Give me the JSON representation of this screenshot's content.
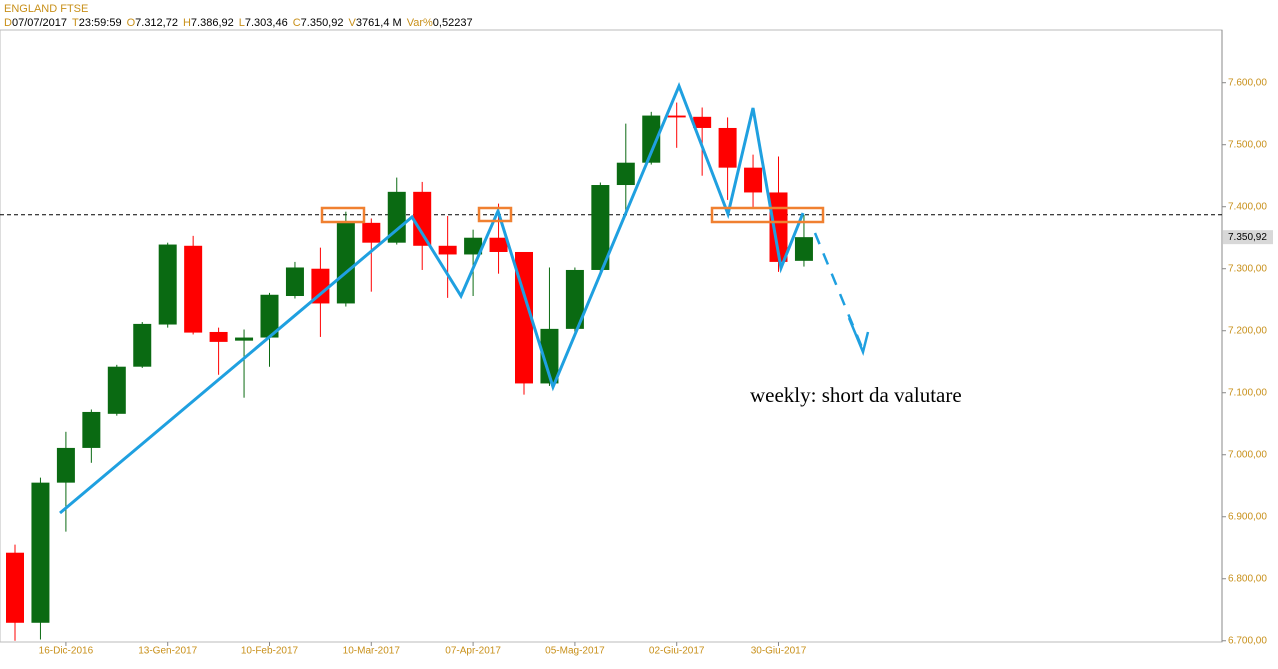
{
  "header": {
    "title": "ENGLAND FTSE",
    "fields": [
      [
        "D",
        "07/07/2017"
      ],
      [
        "T",
        "23:59:59"
      ],
      [
        "O",
        "7.312,72"
      ],
      [
        "H",
        "7.386,92"
      ],
      [
        "L",
        "7.303,46"
      ],
      [
        "C",
        "7.350,92"
      ],
      [
        "V",
        "3761,4 M"
      ],
      [
        "Var%",
        "0,52237"
      ]
    ]
  },
  "chart_data": {
    "type": "candlestick",
    "categories": [
      null,
      null,
      "16-Dic-2016",
      null,
      null,
      null,
      "13-Gen-2017",
      null,
      null,
      null,
      "10-Feb-2017",
      null,
      null,
      null,
      "10-Mar-2017",
      null,
      null,
      null,
      "07-Apr-2017",
      null,
      null,
      null,
      "05-Mag-2017",
      null,
      null,
      null,
      "02-Giu-2017",
      null,
      null,
      null,
      "30-Giu-2017",
      null
    ],
    "open": [
      6842,
      6729,
      6955,
      7011,
      7066,
      7142,
      7210,
      7337,
      7198,
      7184,
      7189,
      7256,
      7300,
      7244,
      7374,
      7342,
      7424,
      7337,
      7323,
      7350,
      7327,
      7115,
      7203,
      7298,
      7435,
      7471,
      7547,
      7545,
      7527,
      7463,
      7423,
      7312.72
    ],
    "high": [
      6855,
      6963,
      7037,
      7073,
      7145,
      7214,
      7342,
      7353,
      7205,
      7202,
      7261,
      7311,
      7334,
      7392,
      7381,
      7447,
      7440,
      7385,
      7363,
      7405,
      7327,
      7302,
      7302,
      7439,
      7534,
      7553,
      7568,
      7560,
      7544,
      7484,
      7481,
      7386.92
    ],
    "low": [
      6700,
      6702,
      6876,
      6987,
      7063,
      7140,
      7205,
      7194,
      7129,
      7092,
      7142,
      7252,
      7190,
      7239,
      7263,
      7339,
      7298,
      7253,
      7256,
      7292,
      7097,
      7111,
      7198,
      7295,
      7390,
      7468,
      7495,
      7450,
      7411,
      7398,
      7295,
      7303.46
    ],
    "close": [
      6729,
      6955,
      7011,
      7069,
      7142,
      7211,
      7339,
      7197,
      7182,
      7189,
      7258,
      7302,
      7244,
      7376,
      7342,
      7424,
      7337,
      7323,
      7350,
      7327,
      7115,
      7203,
      7298,
      7435,
      7471,
      7547,
      7544,
      7527,
      7463,
      7423,
      7311,
      7350.92
    ],
    "up_color": "#0a6a12",
    "down_color": "#ff0000",
    "ylim": [
      6698,
      7685
    ],
    "yticks": [
      {
        "value": 6700,
        "label": "6.700,00"
      },
      {
        "value": 6800,
        "label": "6.800,00"
      },
      {
        "value": 6900,
        "label": "6.900,00"
      },
      {
        "value": 7000,
        "label": "7.000,00"
      },
      {
        "value": 7100,
        "label": "7.100,00"
      },
      {
        "value": 7200,
        "label": "7.200,00"
      },
      {
        "value": 7300,
        "label": "7.300,00"
      },
      {
        "value": 7400,
        "label": "7.400,00"
      },
      {
        "value": 7500,
        "label": "7.500,00"
      },
      {
        "value": 7600,
        "label": "7.600,00"
      }
    ],
    "price_marker": {
      "value": 7350.92,
      "label": "7.350,92"
    },
    "level_line": 7387,
    "annotation": "weekly: short da valutare"
  }
}
